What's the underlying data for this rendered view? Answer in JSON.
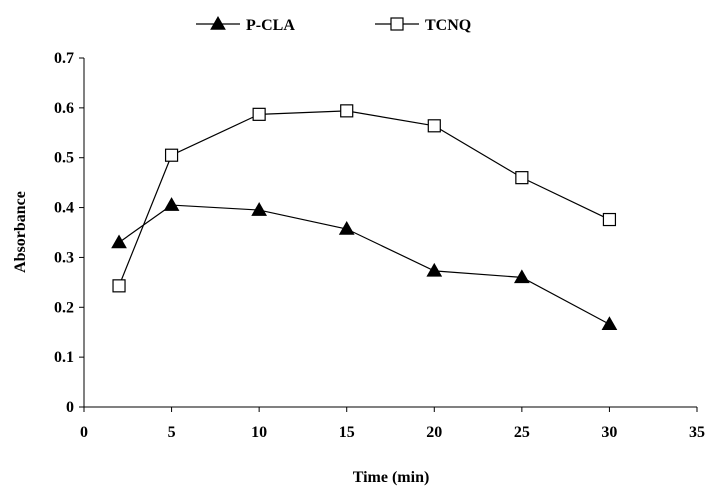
{
  "chart_data": {
    "type": "line",
    "title": "",
    "xlabel": "Time (min)",
    "ylabel": "Absorbance",
    "xlim": [
      0,
      35
    ],
    "ylim": [
      0,
      0.7
    ],
    "xticks": [
      "0",
      "5",
      "10",
      "15",
      "20",
      "25",
      "30",
      "35"
    ],
    "yticks": [
      "0",
      "0.1",
      "0.2",
      "0.3",
      "0.4",
      "0.5",
      "0.6",
      "0.7"
    ],
    "grid": false,
    "legend_position": "top-center",
    "series": [
      {
        "name": "P-CLA",
        "marker": "filled-triangle",
        "color": "#000000",
        "x": [
          2,
          5,
          10,
          15,
          20,
          25,
          30
        ],
        "y": [
          0.33,
          0.405,
          0.395,
          0.357,
          0.273,
          0.26,
          0.166
        ]
      },
      {
        "name": "TCNQ",
        "marker": "open-square",
        "color": "#000000",
        "x": [
          2,
          5,
          10,
          15,
          20,
          25,
          30
        ],
        "y": [
          0.243,
          0.505,
          0.587,
          0.594,
          0.564,
          0.46,
          0.376
        ]
      }
    ]
  }
}
